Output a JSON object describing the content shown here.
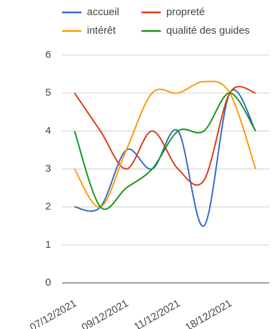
{
  "chart_data": {
    "type": "line",
    "curve": "smooth",
    "categories": [
      "07/12/2021",
      null,
      "09/12/2021",
      null,
      "11/12/2021",
      null,
      "18/12/2021",
      null
    ],
    "series": [
      {
        "name": "accueil",
        "color": "#3366cc",
        "values": [
          2,
          2,
          3.5,
          3,
          4,
          1.5,
          5,
          4
        ]
      },
      {
        "name": "propreté",
        "color": "#dc3912",
        "values": [
          5,
          4,
          3,
          4,
          3,
          2.7,
          5,
          5
        ]
      },
      {
        "name": "intérêt",
        "color": "#ff9900",
        "values": [
          3,
          2,
          3.5,
          5,
          5,
          5.3,
          5,
          3
        ]
      },
      {
        "name": "qualité des guides",
        "color": "#109618",
        "values": [
          4,
          2,
          2.5,
          3,
          4,
          4,
          5,
          4
        ]
      }
    ],
    "ylim": [
      0,
      6
    ],
    "yticks": [
      0,
      1,
      2,
      3,
      4,
      5,
      6
    ],
    "grid": true,
    "legend": "top"
  }
}
